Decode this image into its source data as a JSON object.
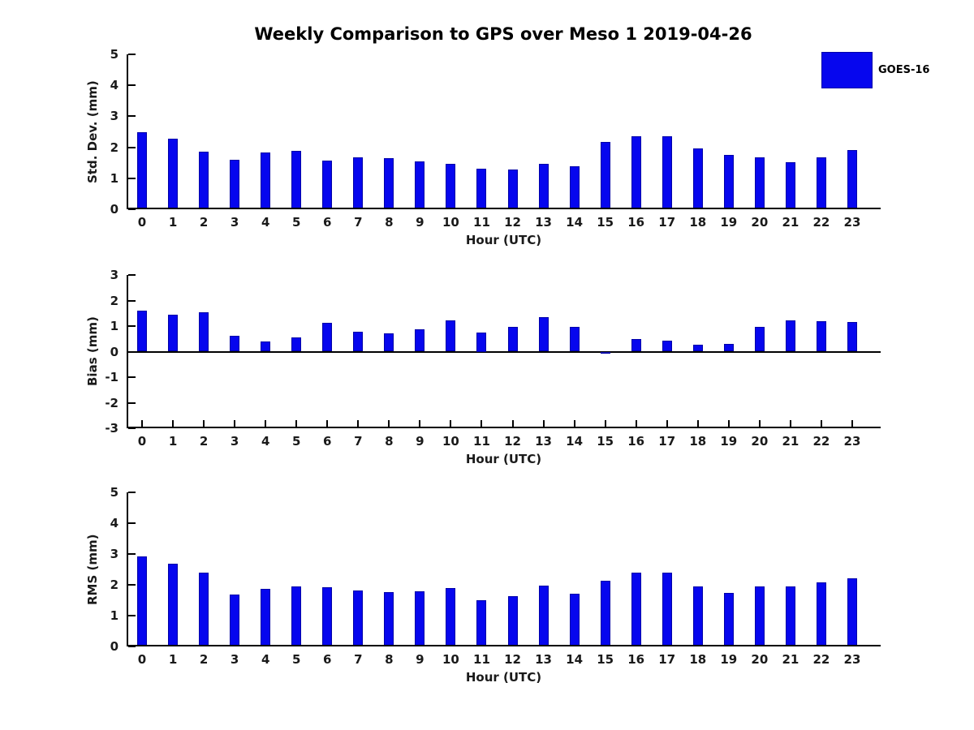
{
  "title": "Weekly Comparison to GPS over Meso 1 2019-04-26",
  "legend": {
    "label": "GOES-16",
    "color": "#0606ee"
  },
  "colors": {
    "bar_fill": "#0606ee",
    "bar_edge": "#0000a8",
    "axis": "#000000",
    "text": "#1a1a1a"
  },
  "chart_data": [
    {
      "type": "bar",
      "panel": "std-dev",
      "ylabel": "Std. Dev. (mm)",
      "xlabel": "Hour (UTC)",
      "ylim": [
        0,
        5
      ],
      "yticks": [
        0,
        1,
        2,
        3,
        4,
        5
      ],
      "grid": false,
      "legend_position": "upper-right-outside",
      "categories": [
        "0",
        "1",
        "2",
        "3",
        "4",
        "5",
        "6",
        "7",
        "8",
        "9",
        "10",
        "11",
        "12",
        "13",
        "14",
        "15",
        "16",
        "17",
        "18",
        "19",
        "20",
        "21",
        "22",
        "23"
      ],
      "series": [
        {
          "name": "GOES-16",
          "values": [
            2.48,
            2.27,
            1.85,
            1.6,
            1.84,
            1.88,
            1.57,
            1.67,
            1.64,
            1.55,
            1.46,
            1.3,
            1.28,
            1.46,
            1.4,
            2.16,
            2.36,
            2.36,
            1.96,
            1.75,
            1.67,
            1.52,
            1.67,
            1.9
          ]
        }
      ]
    },
    {
      "type": "bar",
      "panel": "bias",
      "ylabel": "Bias (mm)",
      "xlabel": "Hour (UTC)",
      "ylim": [
        -3,
        3
      ],
      "yticks": [
        -3,
        -2,
        -1,
        0,
        1,
        2,
        3
      ],
      "grid": false,
      "categories": [
        "0",
        "1",
        "2",
        "3",
        "4",
        "5",
        "6",
        "7",
        "8",
        "9",
        "10",
        "11",
        "12",
        "13",
        "14",
        "15",
        "16",
        "17",
        "18",
        "19",
        "20",
        "21",
        "22",
        "23"
      ],
      "series": [
        {
          "name": "GOES-16",
          "values": [
            1.6,
            1.44,
            1.53,
            0.61,
            0.4,
            0.55,
            1.12,
            0.77,
            0.7,
            0.88,
            1.23,
            0.75,
            0.97,
            1.35,
            0.97,
            -0.07,
            0.48,
            0.42,
            0.27,
            0.3,
            0.97,
            1.21,
            1.18,
            1.15
          ]
        }
      ]
    },
    {
      "type": "bar",
      "panel": "rms",
      "ylabel": "RMS (mm)",
      "xlabel": "Hour (UTC)",
      "ylim": [
        0,
        5
      ],
      "yticks": [
        0,
        1,
        2,
        3,
        4,
        5
      ],
      "grid": false,
      "categories": [
        "0",
        "1",
        "2",
        "3",
        "4",
        "5",
        "6",
        "7",
        "8",
        "9",
        "10",
        "11",
        "12",
        "13",
        "14",
        "15",
        "16",
        "17",
        "18",
        "19",
        "20",
        "21",
        "22",
        "23"
      ],
      "series": [
        {
          "name": "GOES-16",
          "values": [
            2.93,
            2.69,
            2.4,
            1.69,
            1.88,
            1.94,
            1.91,
            1.81,
            1.76,
            1.78,
            1.9,
            1.49,
            1.62,
            1.98,
            1.7,
            2.14,
            2.4,
            2.4,
            1.96,
            1.75,
            1.94,
            1.95,
            2.07,
            2.21
          ]
        }
      ]
    }
  ]
}
